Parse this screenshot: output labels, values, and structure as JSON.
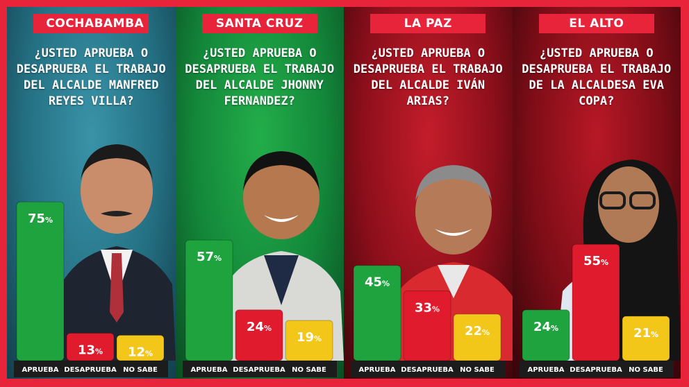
{
  "chart_data": [
    {
      "type": "bar",
      "city": "COCHABAMBA",
      "question": "¿USTED APRUEBA O DESAPRUEBA EL TRABAJO DEL ALCALDE MANFRED REYES VILLA?",
      "categories": [
        "APRUEBA",
        "DESAPRUEBA",
        "NO SABE"
      ],
      "values": [
        75,
        13,
        12
      ],
      "ylim": [
        0,
        100
      ]
    },
    {
      "type": "bar",
      "city": "SANTA CRUZ",
      "question": "¿USTED APRUEBA O DESAPRUEBA EL TRABAJO DEL ALCALDE JHONNY FERNANDEZ?",
      "categories": [
        "APRUEBA",
        "DESAPRUEBA",
        "NO SABE"
      ],
      "values": [
        57,
        24,
        19
      ],
      "ylim": [
        0,
        100
      ]
    },
    {
      "type": "bar",
      "city": "LA PAZ",
      "question": "¿USTED APRUEBA O DESAPRUEBA EL TRABAJO DEL ALCALDE IVÁN ARIAS?",
      "categories": [
        "APRUEBA",
        "DESAPRUEBA",
        "NO SABE"
      ],
      "values": [
        45,
        33,
        22
      ],
      "ylim": [
        0,
        100
      ]
    },
    {
      "type": "bar",
      "city": "EL ALTO",
      "question": "¿USTED APRUEBA O DESAPRUEBA EL TRABAJO DE LA ALCALDESA EVA COPA?",
      "categories": [
        "APRUEBA",
        "DESAPRUEBA",
        "NO SABE"
      ],
      "values": [
        24,
        55,
        21
      ],
      "ylim": [
        0,
        100
      ]
    }
  ],
  "colors": {
    "aprueba": "#1ea33e",
    "desaprueba": "#e01b2e",
    "no_sabe": "#f3c61a",
    "accent": "#e8243a"
  },
  "percent_sign": "%"
}
